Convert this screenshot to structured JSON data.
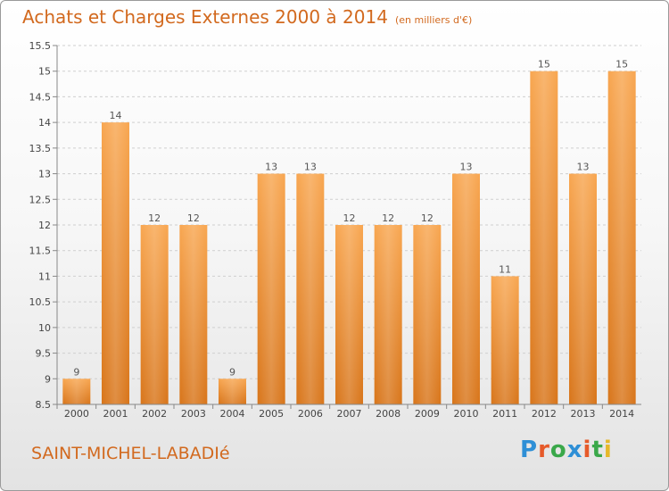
{
  "header": {
    "title": "Achats et Charges Externes 2000 à 2014",
    "subtitle": "(en milliers d'€)"
  },
  "footer": {
    "commune": "SAINT-MICHEL-LABADIé",
    "logo": "Proxiti"
  },
  "colors": {
    "bar_light": "#f8a650",
    "bar_dark": "#d8751a",
    "title": "#d2691e",
    "logo": [
      "#2e8fd6",
      "#e65a2a",
      "#3aa84a",
      "#2e8fd6",
      "#e65a2a",
      "#3aa84a",
      "#e6b82a"
    ]
  },
  "chart_data": {
    "type": "bar",
    "title": "Achats et Charges Externes 2000 à 2014",
    "subtitle": "(en milliers d'€)",
    "categories": [
      "2000",
      "2001",
      "2002",
      "2003",
      "2004",
      "2005",
      "2006",
      "2007",
      "2008",
      "2009",
      "2010",
      "2011",
      "2012",
      "2013",
      "2014"
    ],
    "values": [
      9,
      14,
      12,
      12,
      9,
      13,
      13,
      12,
      12,
      12,
      13,
      11,
      15,
      13,
      15
    ],
    "data_labels": [
      "9",
      "14",
      "12",
      "12",
      "9",
      "13",
      "13",
      "12",
      "12",
      "12",
      "13",
      "11",
      "15",
      "13",
      "15"
    ],
    "ylim": [
      8.5,
      15.5
    ],
    "yticks": [
      8.5,
      9,
      9.5,
      10,
      10.5,
      11,
      11.5,
      12,
      12.5,
      13,
      13.5,
      14,
      14.5,
      15,
      15.5
    ],
    "ytick_labels": [
      "8.5",
      "9",
      "9.5",
      "10",
      "10.5",
      "11",
      "11.5",
      "12",
      "12.5",
      "13",
      "13.5",
      "14",
      "14.5",
      "15",
      "15.5"
    ],
    "grid": "y",
    "legend": "none"
  }
}
